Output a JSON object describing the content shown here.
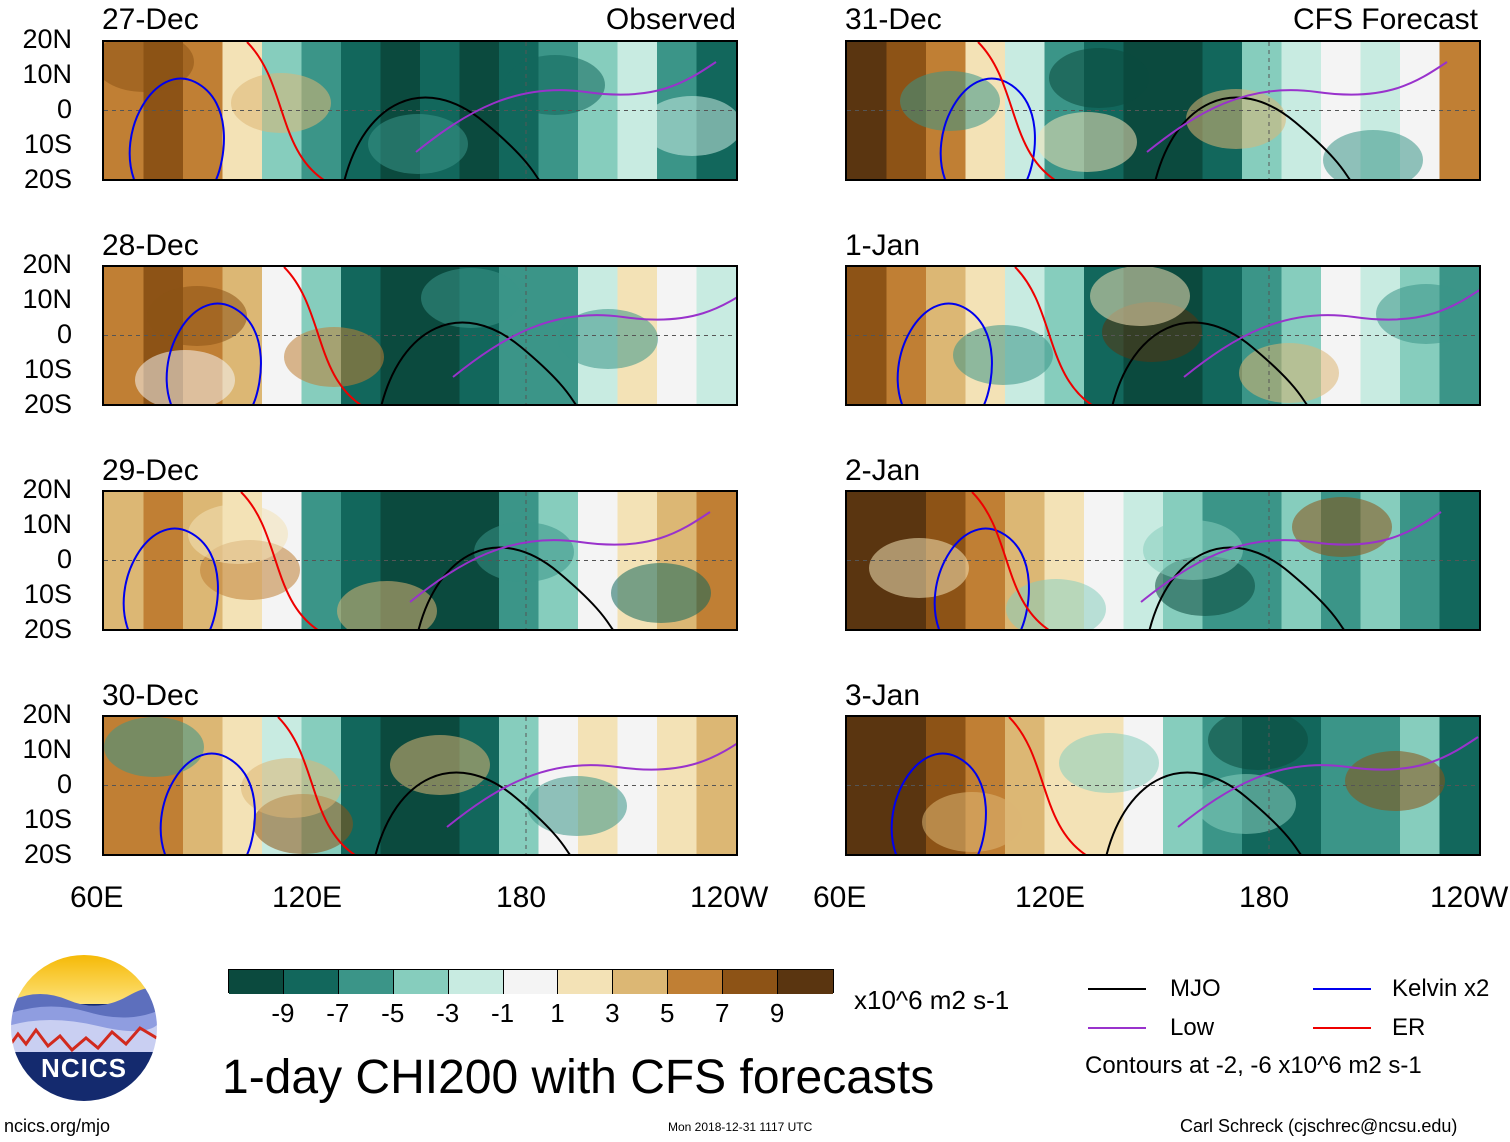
{
  "panels": {
    "observed": [
      {
        "date": "27-Dec",
        "tag": "Observed"
      },
      {
        "date": "28-Dec"
      },
      {
        "date": "29-Dec"
      },
      {
        "date": "30-Dec"
      }
    ],
    "forecast": [
      {
        "date": "31-Dec",
        "tag": "CFS Forecast"
      },
      {
        "date": "1-Jan"
      },
      {
        "date": "2-Jan"
      },
      {
        "date": "3-Jan"
      }
    ]
  },
  "lat_labels": [
    "20N",
    "10N",
    "0",
    "10S",
    "20S"
  ],
  "lon_labels": [
    "60E",
    "120E",
    "180",
    "120W"
  ],
  "colorbar": {
    "ticks": [
      "-9",
      "-7",
      "-5",
      "-3",
      "-1",
      "1",
      "3",
      "5",
      "7",
      "9"
    ],
    "units": "x10^6 m2 s-1",
    "colors": [
      "#0b4a3e",
      "#12675c",
      "#3b9588",
      "#86cdbd",
      "#c8ebe1",
      "#f4f4f4",
      "#f3e2b6",
      "#dcb774",
      "#c07f34",
      "#8d5316",
      "#5a3510"
    ]
  },
  "legend": {
    "items": [
      {
        "label": "MJO",
        "color": "#000000"
      },
      {
        "label": "Kelvin x2",
        "color": "#0000ee"
      },
      {
        "label": "Low",
        "color": "#9932cc"
      },
      {
        "label": "ER",
        "color": "#ee0000"
      }
    ],
    "note": "Contours at -2, -6 x10^6 m2 s-1"
  },
  "title": "1-day CHI200 with CFS forecasts",
  "logo_text": "NCICS",
  "footer": {
    "url": "ncics.org/mjo",
    "timestamp": "Mon 2018-12-31 1117 UTC",
    "author": "Carl Schreck (cjschrec@ncsu.edu)"
  }
}
